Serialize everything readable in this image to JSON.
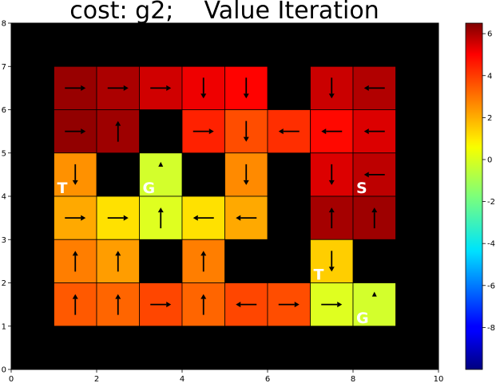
{
  "chart_data": {
    "type": "heatmap",
    "title": "cost: g2;    Value Iteration",
    "xlim": [
      0,
      10
    ],
    "ylim": [
      0,
      8
    ],
    "x_ticks": [
      "0",
      "2",
      "4",
      "6",
      "8",
      "10"
    ],
    "y_ticks": [
      "0",
      "1",
      "2",
      "3",
      "4",
      "5",
      "6",
      "7",
      "8"
    ],
    "colorbar": {
      "colormap": "jet",
      "range": [
        -10,
        6.5
      ],
      "tick_values": [
        "6",
        "4",
        "2",
        "0",
        "-2",
        "-4",
        "-6",
        "-8"
      ]
    },
    "background_color": "#000000",
    "grid": false,
    "cells": [
      {
        "x": 1,
        "y": 6,
        "value": 6.1,
        "arrow": "right"
      },
      {
        "x": 2,
        "y": 6,
        "value": 5.8,
        "arrow": "right"
      },
      {
        "x": 3,
        "y": 6,
        "value": 5.2,
        "arrow": "right"
      },
      {
        "x": 4,
        "y": 6,
        "value": 4.7,
        "arrow": "down"
      },
      {
        "x": 5,
        "y": 6,
        "value": 4.4,
        "arrow": "down"
      },
      {
        "x": 7,
        "y": 6,
        "value": 5.3,
        "arrow": "down"
      },
      {
        "x": 8,
        "y": 6,
        "value": 5.7,
        "arrow": "left"
      },
      {
        "x": 1,
        "y": 5,
        "value": 6.2,
        "arrow": "right"
      },
      {
        "x": 2,
        "y": 5,
        "value": 6.0,
        "arrow": "up"
      },
      {
        "x": 4,
        "y": 5,
        "value": 3.9,
        "arrow": "right"
      },
      {
        "x": 5,
        "y": 5,
        "value": 3.2,
        "arrow": "down"
      },
      {
        "x": 6,
        "y": 5,
        "value": 3.7,
        "arrow": "left"
      },
      {
        "x": 7,
        "y": 5,
        "value": 4.3,
        "arrow": "left"
      },
      {
        "x": 8,
        "y": 5,
        "value": 5.0,
        "arrow": "left"
      },
      {
        "x": 1,
        "y": 4,
        "value": 2.1,
        "arrow": "down"
      },
      {
        "x": 3,
        "y": 4,
        "value": -0.4,
        "arrow": "goal"
      },
      {
        "x": 5,
        "y": 4,
        "value": 2.2,
        "arrow": "down"
      },
      {
        "x": 7,
        "y": 4,
        "value": 5.0,
        "arrow": "down"
      },
      {
        "x": 8,
        "y": 4,
        "value": 5.5,
        "arrow": "left"
      },
      {
        "x": 1,
        "y": 3,
        "value": 1.7,
        "arrow": "right"
      },
      {
        "x": 2,
        "y": 3,
        "value": 0.8,
        "arrow": "right"
      },
      {
        "x": 3,
        "y": 3,
        "value": -0.2,
        "arrow": "up"
      },
      {
        "x": 4,
        "y": 3,
        "value": 0.8,
        "arrow": "left"
      },
      {
        "x": 5,
        "y": 3,
        "value": 1.7,
        "arrow": "left"
      },
      {
        "x": 7,
        "y": 3,
        "value": 5.9,
        "arrow": "up"
      },
      {
        "x": 8,
        "y": 3,
        "value": 6.0,
        "arrow": "up"
      },
      {
        "x": 1,
        "y": 2,
        "value": 2.4,
        "arrow": "up"
      },
      {
        "x": 2,
        "y": 2,
        "value": 1.9,
        "arrow": "up"
      },
      {
        "x": 4,
        "y": 2,
        "value": 2.4,
        "arrow": "up"
      },
      {
        "x": 7,
        "y": 2,
        "value": 1.1,
        "arrow": "down"
      },
      {
        "x": 1,
        "y": 1,
        "value": 3.0,
        "arrow": "up"
      },
      {
        "x": 2,
        "y": 1,
        "value": 2.8,
        "arrow": "up"
      },
      {
        "x": 3,
        "y": 1,
        "value": 3.3,
        "arrow": "right"
      },
      {
        "x": 4,
        "y": 1,
        "value": 2.8,
        "arrow": "up"
      },
      {
        "x": 5,
        "y": 1,
        "value": 3.3,
        "arrow": "left"
      },
      {
        "x": 6,
        "y": 1,
        "value": 3.2,
        "arrow": "right"
      },
      {
        "x": 7,
        "y": 1,
        "value": -0.2,
        "arrow": "right"
      },
      {
        "x": 8,
        "y": 1,
        "value": -0.4,
        "arrow": "goal"
      }
    ],
    "markers": [
      {
        "label": "T",
        "x": 1,
        "y": 4
      },
      {
        "label": "G",
        "x": 3,
        "y": 4
      },
      {
        "label": "S",
        "x": 8,
        "y": 4
      },
      {
        "label": "T",
        "x": 7,
        "y": 2
      },
      {
        "label": "G",
        "x": 8,
        "y": 1
      }
    ]
  }
}
